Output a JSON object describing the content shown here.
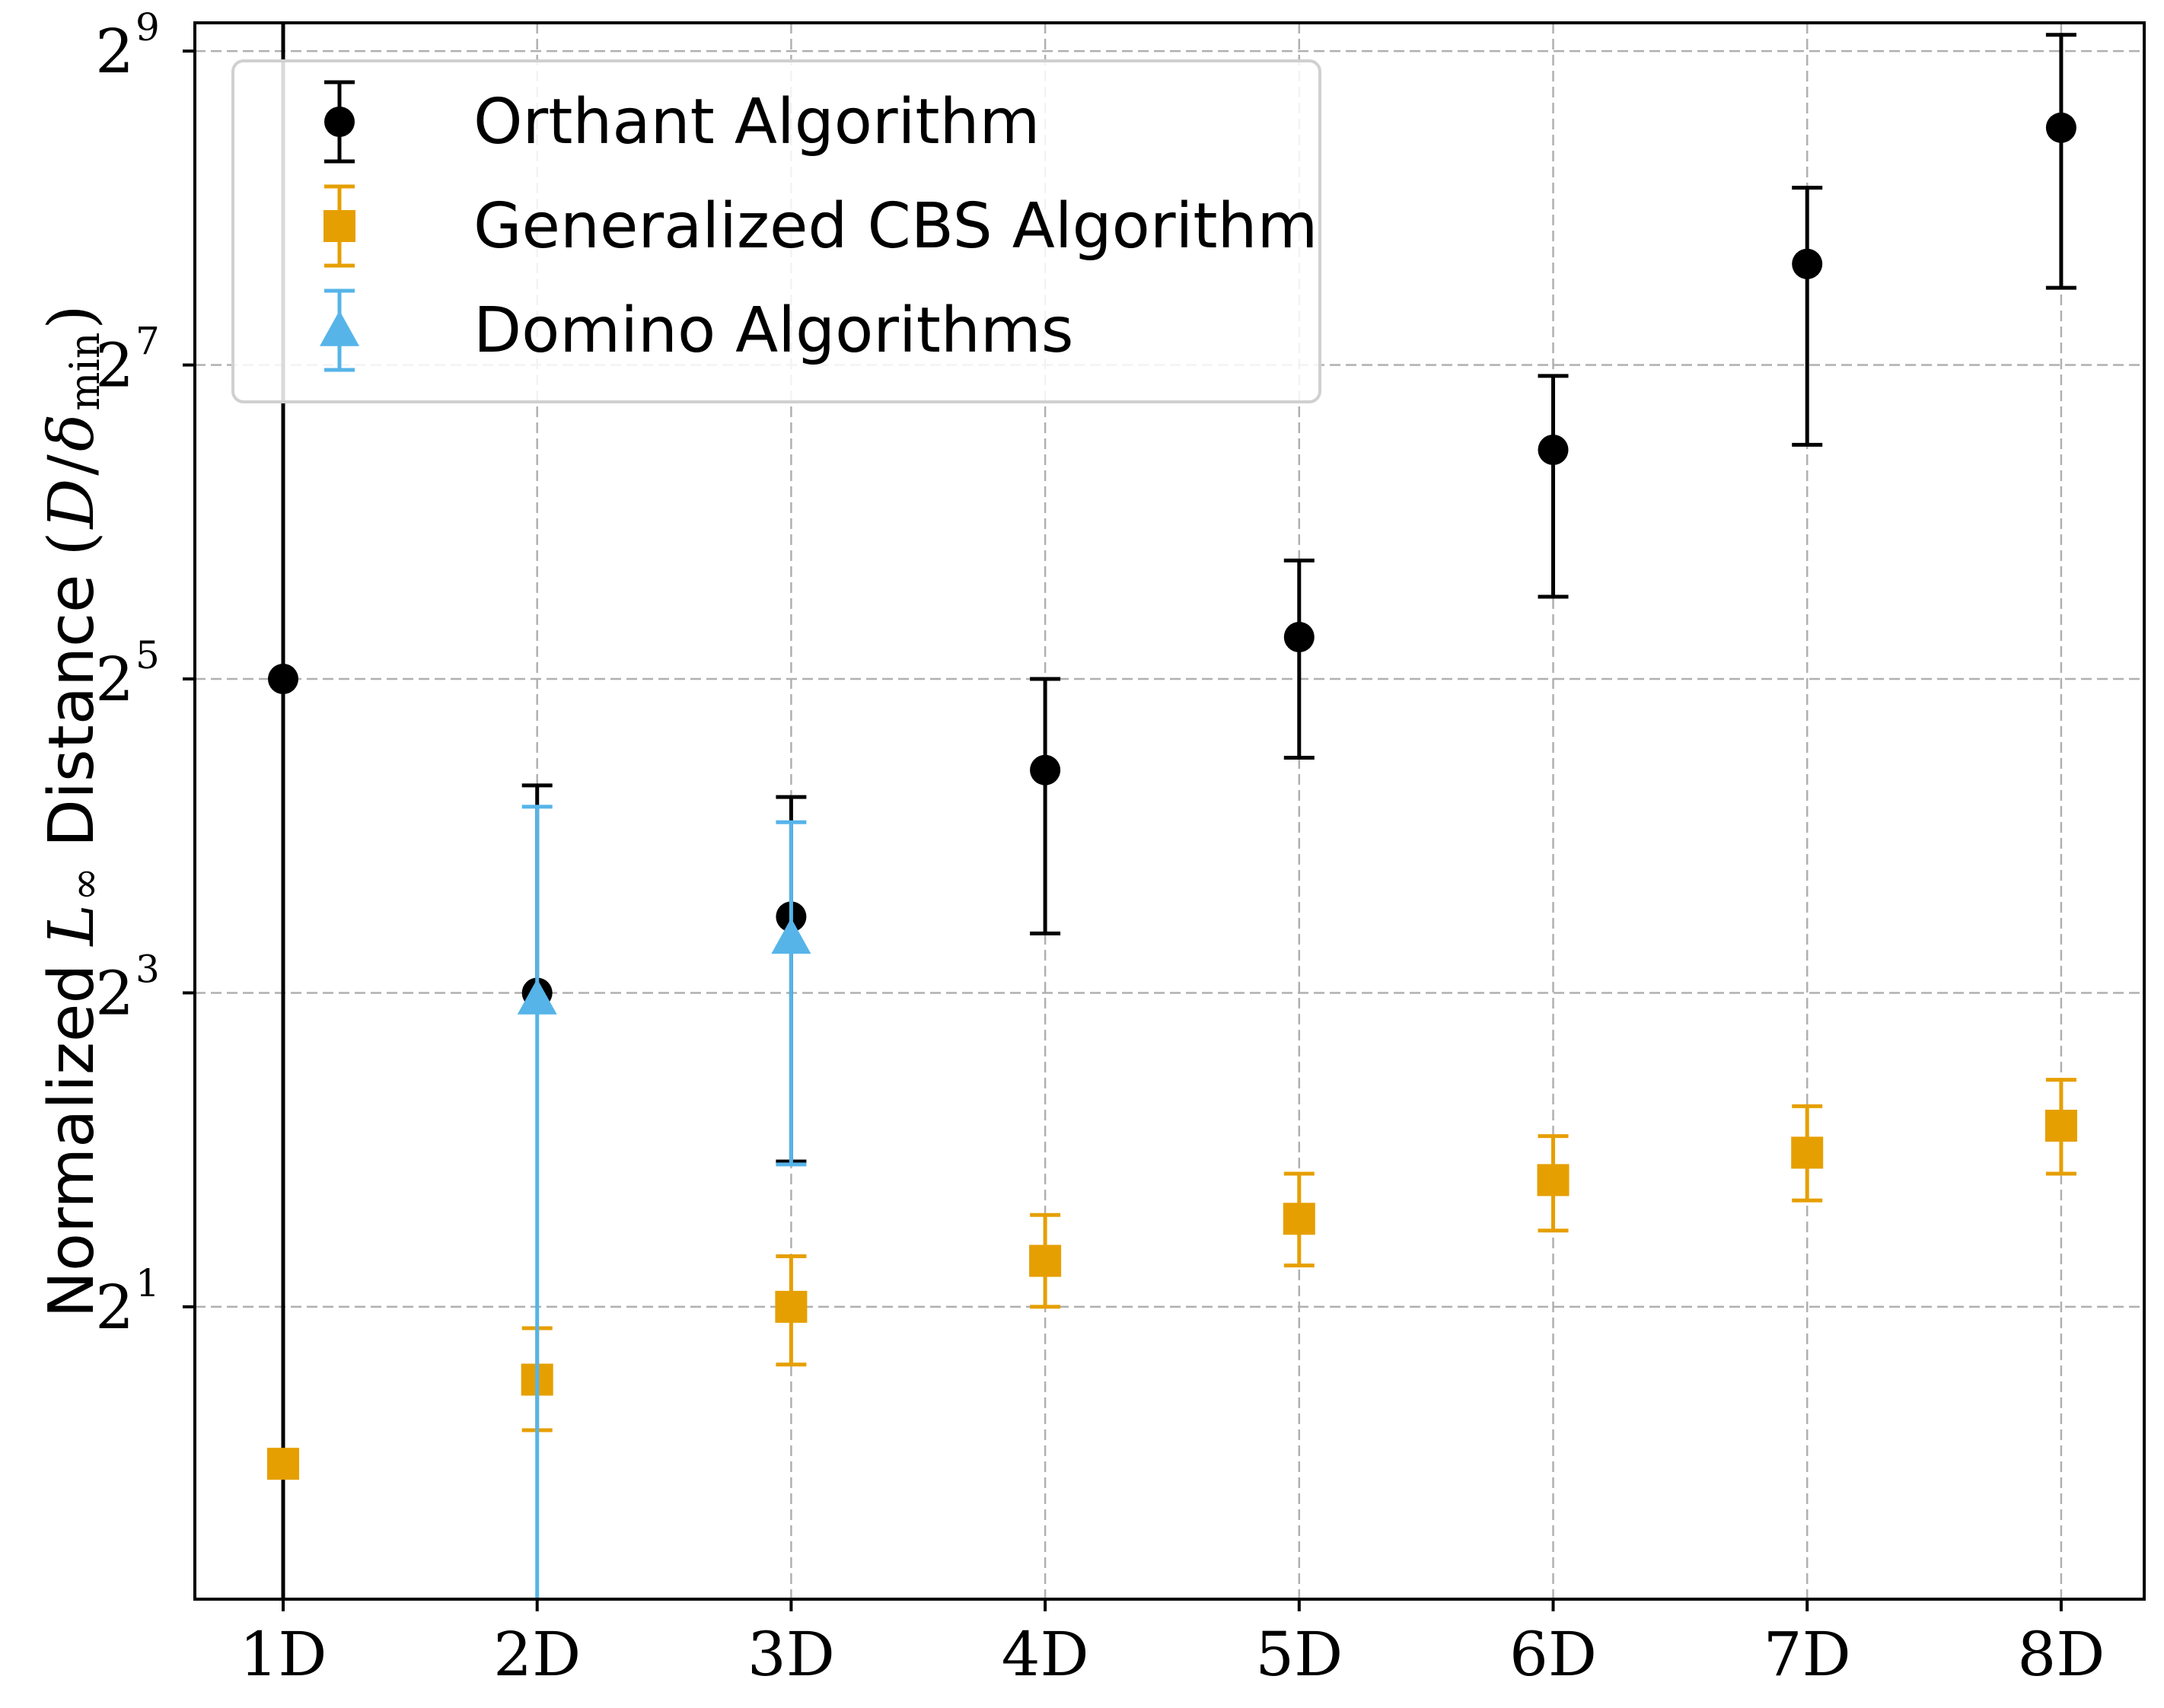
{
  "chart_data": {
    "type": "scatter",
    "title": "",
    "xlabel": "",
    "ylabel": {
      "prefix": "Normalized",
      "math_var": "L",
      "math_sub": "∞",
      "word": "Distance",
      "ratio_open": "(",
      "ratio_num": "D",
      "ratio_slash": "/",
      "ratio_den": "δ",
      "ratio_den_sub": "min",
      "ratio_close": ")"
    },
    "y_scale": "log2",
    "ylim": [
      0.55,
      580
    ],
    "grid": true,
    "legend_position": "top-left",
    "categories": [
      "1D",
      "2D",
      "3D",
      "4D",
      "5D",
      "6D",
      "7D",
      "8D"
    ],
    "y_ticks": [
      {
        "base": "2",
        "exp": "1",
        "value": 2
      },
      {
        "base": "2",
        "exp": "3",
        "value": 8
      },
      {
        "base": "2",
        "exp": "5",
        "value": 32
      },
      {
        "base": "2",
        "exp": "7",
        "value": 128
      },
      {
        "base": "2",
        "exp": "9",
        "value": 512
      }
    ],
    "series": [
      {
        "name": "Orthant Algorithm",
        "marker": "circle",
        "color": "#000000",
        "x": [
          "1D",
          "2D",
          "3D",
          "4D",
          "5D",
          "6D",
          "7D",
          "8D"
        ],
        "y": [
          32,
          8,
          11.2,
          21.4,
          38.5,
          88,
          200,
          365
        ],
        "err_low": [
          0.45,
          null,
          3.8,
          10.4,
          22.6,
          46,
          90,
          180
        ],
        "err_high": [
          700,
          20,
          19,
          32,
          54,
          122,
          280,
          550
        ]
      },
      {
        "name": "Generalized CBS Algorithm",
        "marker": "square",
        "color": "#E69F00",
        "x": [
          "1D",
          "2D",
          "3D",
          "4D",
          "5D",
          "6D",
          "7D",
          "8D"
        ],
        "y": [
          1.0,
          1.45,
          2.0,
          2.45,
          2.95,
          3.5,
          3.95,
          4.45
        ],
        "err_low": [
          null,
          1.16,
          1.55,
          2.0,
          2.4,
          2.8,
          3.2,
          3.6
        ],
        "err_high": [
          null,
          1.82,
          2.5,
          3.0,
          3.6,
          4.25,
          4.85,
          5.45
        ]
      },
      {
        "name": "Domino Algorithms",
        "marker": "triangle",
        "color": "#56B4E9",
        "x": [
          "2D",
          "3D"
        ],
        "y": [
          7.8,
          10.2
        ],
        "err_low": [
          0.4,
          3.75
        ],
        "err_high": [
          18.2,
          17.0
        ]
      }
    ]
  }
}
